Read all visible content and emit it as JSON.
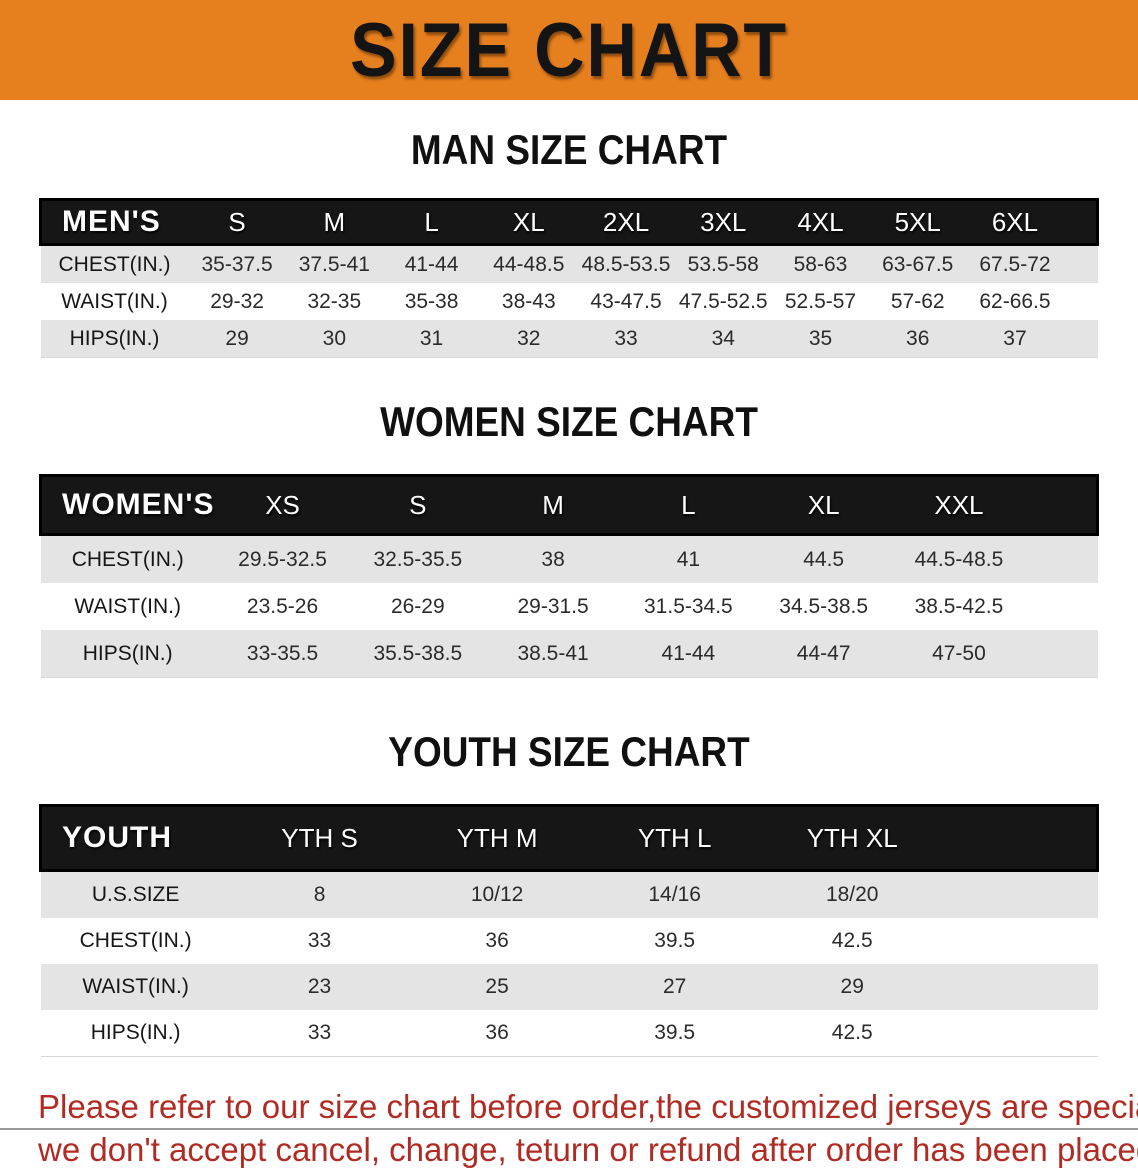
{
  "banner": {
    "title": "SIZE CHART",
    "bg_color": "#E67F1E",
    "text_color": "#141414"
  },
  "sections": [
    {
      "heading": "MAN SIZE CHART",
      "group_label": "MEN'S",
      "columns": [
        "S",
        "M",
        "L",
        "XL",
        "2XL",
        "3XL",
        "4XL",
        "5XL",
        "6XL"
      ],
      "rows": [
        {
          "label": "CHEST(IN.)",
          "values": [
            "35-37.5",
            "37.5-41",
            "41-44",
            "44-48.5",
            "48.5-53.5",
            "53.5-58",
            "58-63",
            "63-67.5",
            "67.5-72"
          ]
        },
        {
          "label": "WAIST(IN.)",
          "values": [
            "29-32",
            "32-35",
            "35-38",
            "38-43",
            "43-47.5",
            "47.5-52.5",
            "52.5-57",
            "57-62",
            "62-66.5"
          ]
        },
        {
          "label": "HIPS(IN.)",
          "values": [
            "29",
            "30",
            "31",
            "32",
            "33",
            "34",
            "35",
            "36",
            "37"
          ]
        }
      ]
    },
    {
      "heading": "WOMEN SIZE CHART",
      "group_label": "WOMEN'S",
      "columns": [
        "XS",
        "S",
        "M",
        "L",
        "XL",
        "XXL"
      ],
      "rows": [
        {
          "label": "CHEST(IN.)",
          "values": [
            "29.5-32.5",
            "32.5-35.5",
            "38",
            "41",
            "44.5",
            "44.5-48.5"
          ]
        },
        {
          "label": "WAIST(IN.)",
          "values": [
            "23.5-26",
            "26-29",
            "29-31.5",
            "31.5-34.5",
            "34.5-38.5",
            "38.5-42.5"
          ]
        },
        {
          "label": "HIPS(IN.)",
          "values": [
            "33-35.5",
            "35.5-38.5",
            "38.5-41",
            "41-44",
            "44-47",
            "47-50"
          ]
        }
      ]
    },
    {
      "heading": "YOUTH SIZE CHART",
      "group_label": "YOUTH",
      "columns": [
        "YTH S",
        "YTH M",
        "YTH L",
        "YTH XL"
      ],
      "rows": [
        {
          "label": "U.S.SIZE",
          "values": [
            "8",
            "10/12",
            "14/16",
            "18/20"
          ]
        },
        {
          "label": "CHEST(IN.)",
          "values": [
            "33",
            "36",
            "39.5",
            "42.5"
          ]
        },
        {
          "label": "WAIST(IN.)",
          "values": [
            "23",
            "25",
            "27",
            "29"
          ]
        },
        {
          "label": "HIPS(IN.)",
          "values": [
            "33",
            "36",
            "39.5",
            "42.5"
          ]
        }
      ]
    }
  ],
  "footer": {
    "lines": [
      "Please refer to our size chart before order,the customized jerseys are special products,",
      "we don't accept cancel, change, teturn or refund after order has been placed!"
    ],
    "text_color": "#B02B23"
  }
}
